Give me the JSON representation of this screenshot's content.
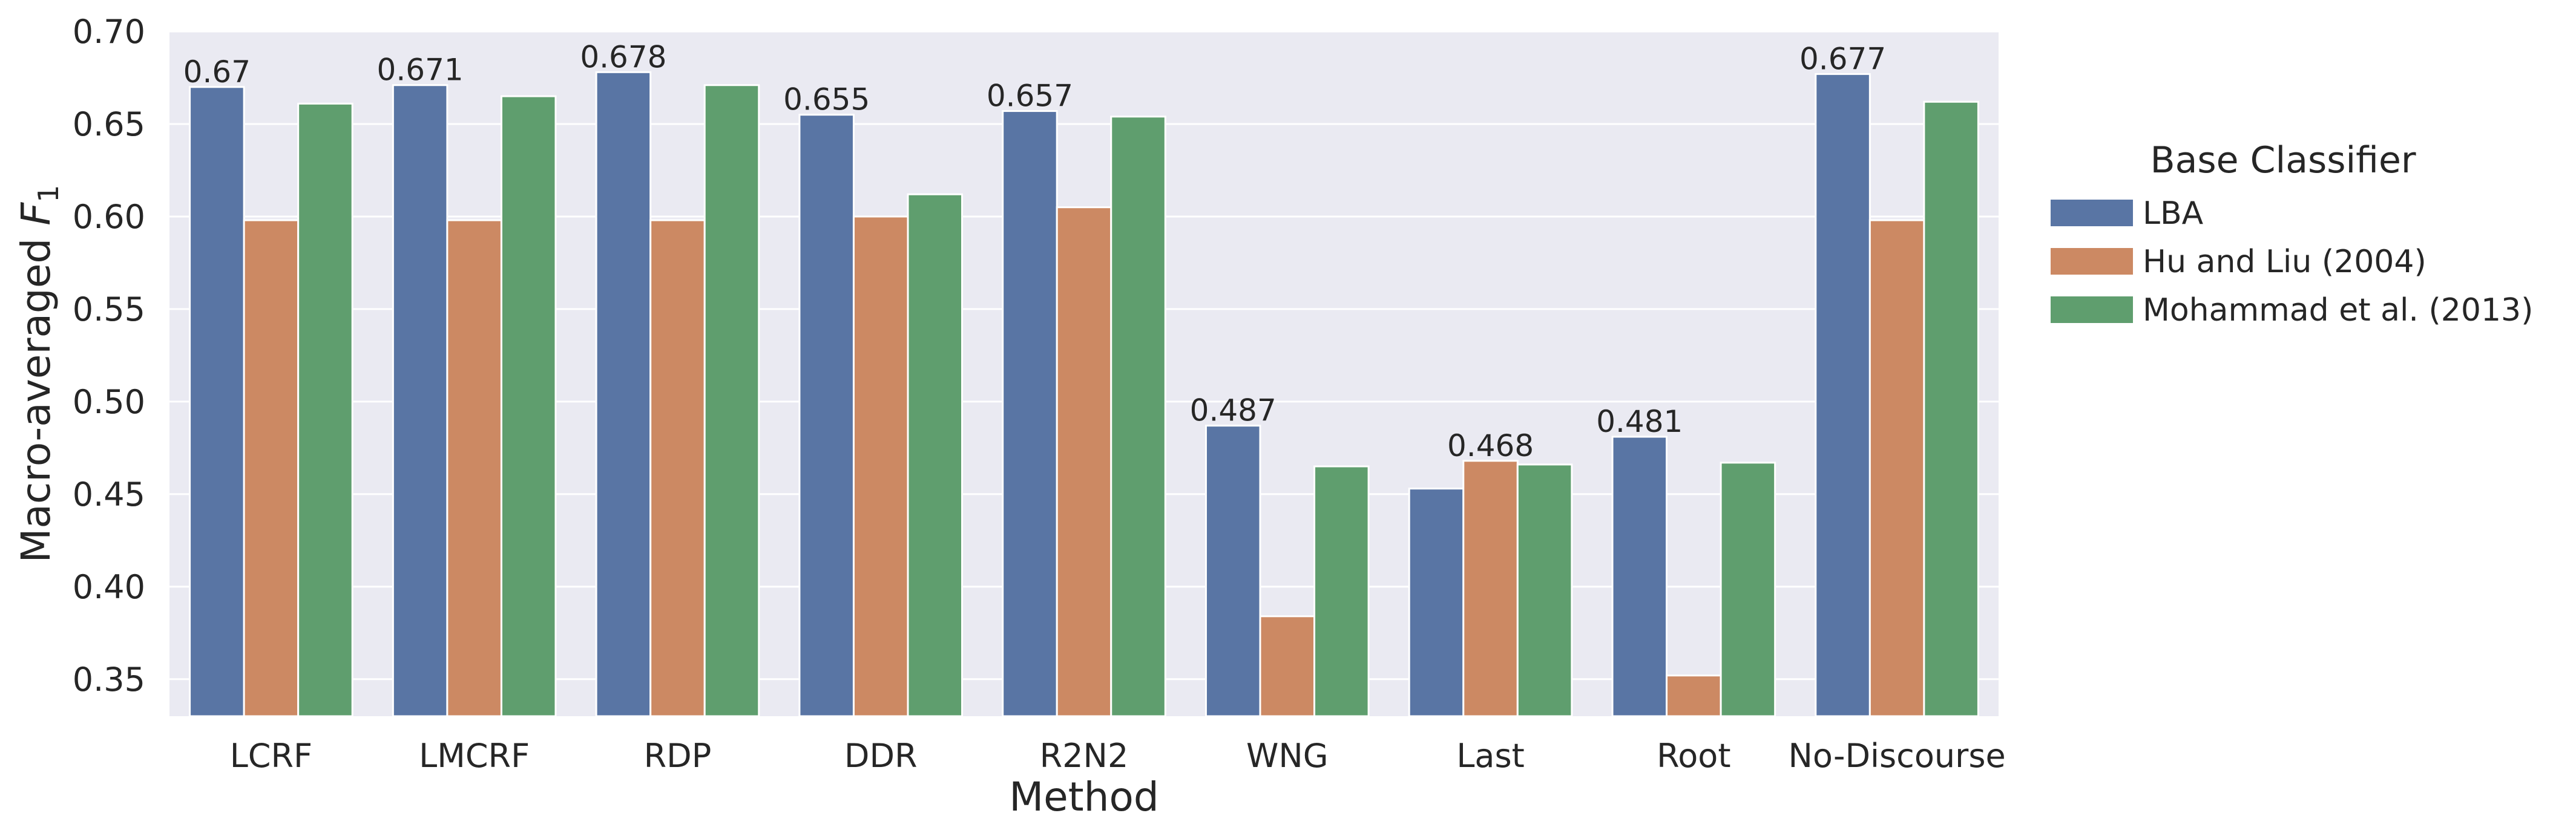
{
  "chart_data": {
    "type": "bar",
    "xlabel": "Method",
    "ylabel_prefix": "Macro-averaged ",
    "ylabel_var": "F",
    "ylabel_sub": "1",
    "ylim": [
      0.33,
      0.7
    ],
    "yticks": [
      "0.35",
      "0.40",
      "0.45",
      "0.50",
      "0.55",
      "0.60",
      "0.65",
      "0.70"
    ],
    "grid": true,
    "legend_position": "right",
    "legend_title": "Base Classifier",
    "categories": [
      "LCRF",
      "LMCRF",
      "RDP",
      "DDR",
      "R2N2",
      "WNG",
      "Last",
      "Root",
      "No-Discourse"
    ],
    "series": [
      {
        "name": "LBA",
        "color": "#5975a4",
        "values": [
          0.67,
          0.671,
          0.678,
          0.655,
          0.657,
          0.487,
          0.453,
          0.481,
          0.677
        ]
      },
      {
        "name": "Hu and Liu (2004)",
        "color": "#cc8963",
        "values": [
          0.598,
          0.598,
          0.598,
          0.6,
          0.605,
          0.384,
          0.468,
          0.352,
          0.598
        ]
      },
      {
        "name": "Mohammad et al. (2013)",
        "color": "#5f9e6e",
        "values": [
          0.661,
          0.665,
          0.671,
          0.612,
          0.654,
          0.465,
          0.466,
          0.467,
          0.662
        ]
      }
    ],
    "data_labels": [
      {
        "category": "LCRF",
        "text": "0.67",
        "value": 0.67
      },
      {
        "category": "LMCRF",
        "text": "0.671",
        "value": 0.671
      },
      {
        "category": "RDP",
        "text": "0.678",
        "value": 0.678
      },
      {
        "category": "DDR",
        "text": "0.655",
        "value": 0.655
      },
      {
        "category": "R2N2",
        "text": "0.657",
        "value": 0.657
      },
      {
        "category": "WNG",
        "text": "0.487",
        "value": 0.487
      },
      {
        "category": "Last",
        "text": "0.468",
        "value": 0.468
      },
      {
        "category": "Root",
        "text": "0.481",
        "value": 0.481
      },
      {
        "category": "No-Discourse",
        "text": "0.677",
        "value": 0.677
      }
    ],
    "colors": {
      "background": "#eaeaf2",
      "grid": "#ffffff",
      "text": "#262626"
    }
  }
}
